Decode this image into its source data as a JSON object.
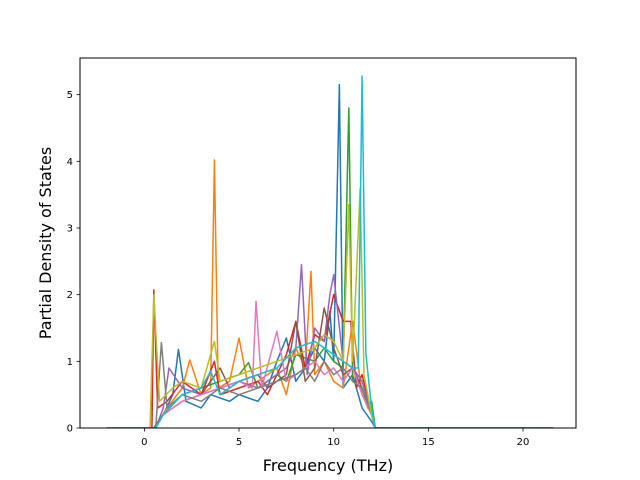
{
  "chart_data": {
    "type": "line",
    "title": "",
    "xlabel": "Frequency (THz)",
    "ylabel": "Partial Density of States",
    "xlim": [
      -3.4,
      22.8
    ],
    "ylim": [
      0,
      5.55
    ],
    "xticks": [
      0,
      5,
      10,
      15,
      20
    ],
    "xtick_labels": [
      "0",
      "5",
      "10",
      "15",
      "20"
    ],
    "yticks": [
      0,
      1,
      2,
      3,
      4,
      5
    ],
    "ytick_labels": [
      "0",
      "1",
      "2",
      "3",
      "4",
      "5"
    ],
    "grid": false,
    "legend": "none",
    "series_colors": [
      "#1f77b4",
      "#ff7f0e",
      "#2ca02c",
      "#d62728",
      "#9467bd",
      "#8c564b",
      "#e377c2",
      "#7f7f7f",
      "#bcbd22",
      "#17becf"
    ],
    "series": [
      {
        "x": [
          -2.0,
          0.5,
          1.0,
          1.5,
          1.8,
          2.2,
          3.0,
          3.5,
          4.5,
          5.0,
          6.0,
          6.5,
          7.0,
          7.5,
          8.0,
          8.5,
          9.0,
          9.5,
          9.8,
          10.0,
          10.3,
          10.5,
          11.0,
          11.3,
          11.5,
          12.0,
          12.2,
          21.6
        ],
        "y": [
          0,
          0,
          0.2,
          0.5,
          1.18,
          0.4,
          0.3,
          0.5,
          0.4,
          0.5,
          0.4,
          0.6,
          1.0,
          1.35,
          0.7,
          0.9,
          1.2,
          1.0,
          1.75,
          1.0,
          5.15,
          0.6,
          0.8,
          0.5,
          0.3,
          0.1,
          0,
          0
        ]
      },
      {
        "x": [
          -2.0,
          0.5,
          1.2,
          2.0,
          2.4,
          3.0,
          3.5,
          3.7,
          3.9,
          4.5,
          5.0,
          5.5,
          6.0,
          7.0,
          7.5,
          8.0,
          8.5,
          8.8,
          9.0,
          9.5,
          10.0,
          10.5,
          11.0,
          11.5,
          12.0,
          12.2,
          21.6
        ],
        "y": [
          0,
          0,
          0.3,
          0.6,
          1.02,
          0.5,
          0.6,
          4.02,
          0.6,
          0.7,
          1.35,
          0.6,
          0.7,
          0.9,
          0.5,
          1.2,
          0.9,
          2.35,
          0.8,
          1.0,
          0.7,
          0.6,
          1.6,
          0.5,
          0.2,
          0,
          0
        ]
      },
      {
        "x": [
          -2.0,
          0.5,
          1.0,
          2.0,
          3.0,
          4.0,
          5.0,
          5.5,
          6.0,
          7.0,
          7.5,
          8.0,
          9.0,
          9.5,
          10.0,
          10.5,
          10.8,
          11.0,
          11.5,
          11.8,
          12.0,
          12.2,
          21.6
        ],
        "y": [
          0,
          0,
          0.2,
          0.5,
          0.6,
          0.7,
          0.8,
          0.98,
          0.6,
          0.8,
          0.7,
          1.1,
          1.0,
          1.2,
          1.0,
          0.9,
          4.8,
          0.7,
          0.6,
          0.3,
          0.4,
          0,
          0
        ]
      },
      {
        "x": [
          -2.0,
          0.4,
          0.5,
          0.7,
          1.2,
          2.0,
          3.0,
          3.7,
          4.0,
          5.0,
          6.0,
          6.5,
          7.0,
          7.5,
          8.0,
          8.5,
          9.0,
          9.5,
          10.0,
          10.5,
          10.9,
          11.2,
          11.5,
          12.0,
          12.2,
          21.6
        ],
        "y": [
          0,
          0,
          2.07,
          0.3,
          0.4,
          0.7,
          0.5,
          1.0,
          0.5,
          0.6,
          0.7,
          0.5,
          0.8,
          1.1,
          1.6,
          0.9,
          1.4,
          1.3,
          2.0,
          1.6,
          1.6,
          0.6,
          0.8,
          0.2,
          0,
          0
        ]
      },
      {
        "x": [
          -2.0,
          0.6,
          1.0,
          1.3,
          2.0,
          3.0,
          4.0,
          5.0,
          6.0,
          7.0,
          7.5,
          8.0,
          8.3,
          8.6,
          9.0,
          9.5,
          9.8,
          10.0,
          10.5,
          11.0,
          11.5,
          12.0,
          12.2,
          21.6
        ],
        "y": [
          0,
          0,
          0.3,
          0.9,
          0.6,
          0.5,
          0.6,
          0.7,
          0.6,
          0.8,
          0.9,
          1.2,
          2.45,
          0.8,
          1.5,
          1.3,
          2.0,
          2.3,
          1.0,
          0.9,
          0.7,
          0.2,
          0,
          0
        ]
      },
      {
        "x": [
          -2.0,
          0.5,
          1.0,
          2.0,
          3.0,
          4.0,
          4.5,
          5.0,
          6.0,
          6.5,
          7.0,
          7.5,
          8.0,
          8.5,
          9.0,
          9.5,
          10.0,
          10.5,
          11.0,
          11.5,
          12.0,
          12.2,
          21.6
        ],
        "y": [
          0,
          0,
          0.2,
          0.4,
          0.5,
          0.9,
          0.6,
          0.7,
          0.8,
          0.6,
          0.7,
          0.8,
          1.6,
          0.7,
          0.9,
          1.8,
          1.2,
          0.8,
          0.9,
          0.6,
          0.2,
          0,
          0
        ]
      },
      {
        "x": [
          -2.0,
          0.6,
          1.0,
          2.0,
          3.0,
          4.0,
          5.0,
          5.7,
          5.9,
          6.2,
          7.0,
          7.5,
          8.0,
          8.5,
          9.0,
          9.5,
          10.0,
          10.5,
          11.0,
          11.5,
          12.0,
          12.2,
          21.6
        ],
        "y": [
          0,
          0,
          0.2,
          0.4,
          0.5,
          0.6,
          0.7,
          0.6,
          1.9,
          0.6,
          1.45,
          0.7,
          0.8,
          0.9,
          1.0,
          0.8,
          0.9,
          0.7,
          0.9,
          0.5,
          0.2,
          0,
          0
        ]
      },
      {
        "x": [
          -2.0,
          0.6,
          0.9,
          1.2,
          2.0,
          3.0,
          4.0,
          5.0,
          6.0,
          7.0,
          8.0,
          8.5,
          9.0,
          9.5,
          10.0,
          10.5,
          11.0,
          11.5,
          12.0,
          12.2,
          21.6
        ],
        "y": [
          0,
          0,
          1.28,
          0.3,
          0.5,
          0.4,
          0.6,
          0.5,
          0.6,
          0.7,
          0.8,
          0.9,
          0.7,
          1.0,
          0.8,
          0.9,
          0.7,
          0.6,
          0.2,
          0,
          0
        ]
      },
      {
        "x": [
          -2.0,
          0.3,
          0.5,
          0.8,
          1.5,
          2.0,
          3.0,
          3.7,
          4.0,
          5.0,
          6.0,
          7.0,
          8.0,
          9.0,
          9.5,
          10.0,
          10.5,
          10.8,
          11.0,
          11.4,
          11.6,
          12.0,
          12.2,
          21.6
        ],
        "y": [
          0,
          0,
          2.0,
          0.4,
          0.6,
          0.7,
          0.6,
          1.3,
          0.7,
          0.8,
          0.9,
          1.0,
          1.1,
          1.2,
          1.4,
          1.3,
          1.0,
          3.35,
          1.0,
          3.6,
          0.8,
          0.2,
          0,
          0
        ]
      },
      {
        "x": [
          -2.0,
          0.6,
          1.0,
          2.0,
          3.0,
          3.5,
          4.0,
          5.0,
          6.0,
          7.0,
          8.0,
          9.0,
          10.0,
          10.5,
          11.0,
          11.3,
          11.5,
          11.7,
          12.0,
          12.2,
          21.6
        ],
        "y": [
          0,
          0,
          0.2,
          0.5,
          0.6,
          0.85,
          0.5,
          0.7,
          0.8,
          0.9,
          1.2,
          1.3,
          1.1,
          1.0,
          0.9,
          0.9,
          5.28,
          1.12,
          0.3,
          0,
          0
        ]
      }
    ]
  }
}
